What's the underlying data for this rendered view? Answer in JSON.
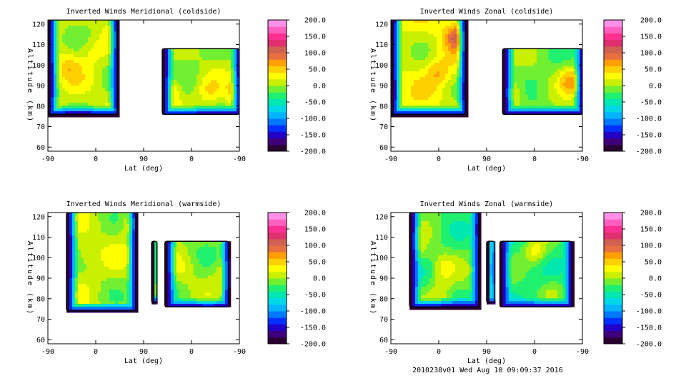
{
  "footer": "2010238v01 Wed Aug 10 09:09:37 2016",
  "colorbar": {
    "ticks": [
      "200.0",
      "150.0",
      "100.0",
      "50.0",
      "0.0",
      "-50.0",
      "-100.0",
      "-150.0",
      "-200.0"
    ],
    "range": [
      -200,
      200
    ],
    "colors": [
      "#2a0030",
      "#3d007a",
      "#2200c8",
      "#0030ff",
      "#0078ff",
      "#00b4ff",
      "#00d8e8",
      "#00e8b0",
      "#20f070",
      "#70f030",
      "#c8f000",
      "#ffff00",
      "#ffd000",
      "#ffa000",
      "#e87040",
      "#d06050",
      "#e03070",
      "#ff3090",
      "#ff60c0",
      "#ff90e8"
    ]
  },
  "chart_data": [
    {
      "type": "heatmap",
      "title": "Inverted Winds Meridional (coldside)",
      "xlabel": "Lat (deg)",
      "ylabel": "Altitude (km)",
      "xticks": [
        "-90",
        "0",
        "90",
        "0",
        "-90"
      ],
      "yticks": [
        "60",
        "70",
        "80",
        "90",
        "100",
        "110",
        "120"
      ],
      "ylim": [
        58,
        122
      ],
      "xlim": [
        -90,
        270
      ],
      "blocks": [
        {
          "x": [
            -90,
            40
          ],
          "alt": [
            76,
            122
          ],
          "base": 10,
          "variation": 30,
          "hot": [
            [
              -55,
              100,
              35
            ],
            [
              -10,
              108,
              20
            ]
          ]
        },
        {
          "x": [
            125,
            270
          ],
          "alt": [
            76,
            108
          ],
          "base": 0,
          "variation": 25,
          "hot": [
            [
              135,
              88,
              60
            ],
            [
              210,
              88,
              35
            ],
            [
              260,
              87,
              45
            ]
          ]
        }
      ]
    },
    {
      "type": "heatmap",
      "title": "Inverted Winds Zonal (coldside)",
      "xlabel": "Lat (deg)",
      "ylabel": "Altitude (km)",
      "xticks": [
        "-90",
        "0",
        "90",
        "0",
        "-90"
      ],
      "yticks": [
        "60",
        "70",
        "80",
        "90",
        "100",
        "110",
        "120"
      ],
      "ylim": [
        58,
        122
      ],
      "xlim": [
        -90,
        270
      ],
      "blocks": [
        {
          "x": [
            -90,
            50
          ],
          "alt": [
            76,
            122
          ],
          "base": 20,
          "variation": 30,
          "hot": [
            [
              30,
              115,
              80
            ],
            [
              -5,
              97,
              40
            ]
          ]
        },
        {
          "x": [
            120,
            270
          ],
          "alt": [
            76,
            108
          ],
          "base": -10,
          "variation": 25,
          "hot": [
            [
              245,
              93,
              70
            ],
            [
              140,
              87,
              40
            ]
          ]
        }
      ]
    },
    {
      "type": "heatmap",
      "title": "Inverted Winds Meridional (warmside)",
      "xlabel": "Lat (deg)",
      "ylabel": "Altitude (km)",
      "xticks": [
        "-90",
        "0",
        "90",
        "0",
        "-90"
      ],
      "yticks": [
        "60",
        "70",
        "80",
        "90",
        "100",
        "110",
        "120"
      ],
      "ylim": [
        58,
        122
      ],
      "xlim": [
        -90,
        270
      ],
      "blocks": [
        {
          "x": [
            -55,
            75
          ],
          "alt": [
            74,
            122
          ],
          "base": 5,
          "variation": 30,
          "hot": [
            [
              -20,
              103,
              30
            ],
            [
              70,
              117,
              40
            ]
          ]
        },
        {
          "x": [
            105,
            115
          ],
          "alt": [
            78,
            108
          ],
          "base": -10,
          "variation": 15,
          "hot": []
        },
        {
          "x": [
            130,
            250
          ],
          "alt": [
            76,
            108
          ],
          "base": -5,
          "variation": 25,
          "hot": [
            [
              245,
              92,
              40
            ],
            [
              160,
              95,
              25
            ]
          ]
        }
      ]
    },
    {
      "type": "heatmap",
      "title": "Inverted Winds Zonal (warmside)",
      "xlabel": "Lat (deg)",
      "ylabel": "Altitude (km)",
      "xticks": [
        "-90",
        "0",
        "90",
        "0",
        "-90"
      ],
      "yticks": [
        "60",
        "70",
        "80",
        "90",
        "100",
        "110",
        "120"
      ],
      "ylim": [
        58,
        122
      ],
      "xlim": [
        -90,
        270
      ],
      "blocks": [
        {
          "x": [
            -55,
            75
          ],
          "alt": [
            76,
            122
          ],
          "base": -20,
          "variation": 30,
          "hot": [
            [
              5,
              96,
              40
            ],
            [
              -45,
              104,
              30
            ],
            [
              0,
              83,
              35
            ]
          ]
        },
        {
          "x": [
            90,
            105
          ],
          "alt": [
            78,
            108
          ],
          "base": -20,
          "variation": 15,
          "hot": []
        },
        {
          "x": [
            115,
            250
          ],
          "alt": [
            76,
            108
          ],
          "base": -30,
          "variation": 25,
          "hot": [
            [
              180,
              104,
              60
            ],
            [
              210,
              85,
              30
            ]
          ]
        }
      ]
    }
  ]
}
